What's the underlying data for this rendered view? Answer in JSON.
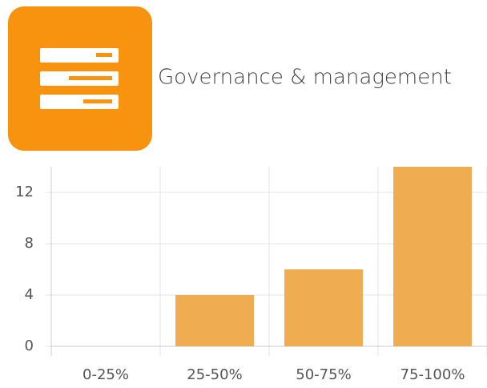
{
  "chart_data": {
    "type": "bar",
    "title": "Governance & management",
    "categories": [
      "0-25%",
      "25-50%",
      "50-75%",
      "75-100%"
    ],
    "values": [
      0,
      4,
      6,
      14
    ],
    "color": "#efac50",
    "ylim": [
      0,
      14
    ],
    "yticks": [
      0,
      4,
      8,
      12
    ],
    "grid": true
  }
}
